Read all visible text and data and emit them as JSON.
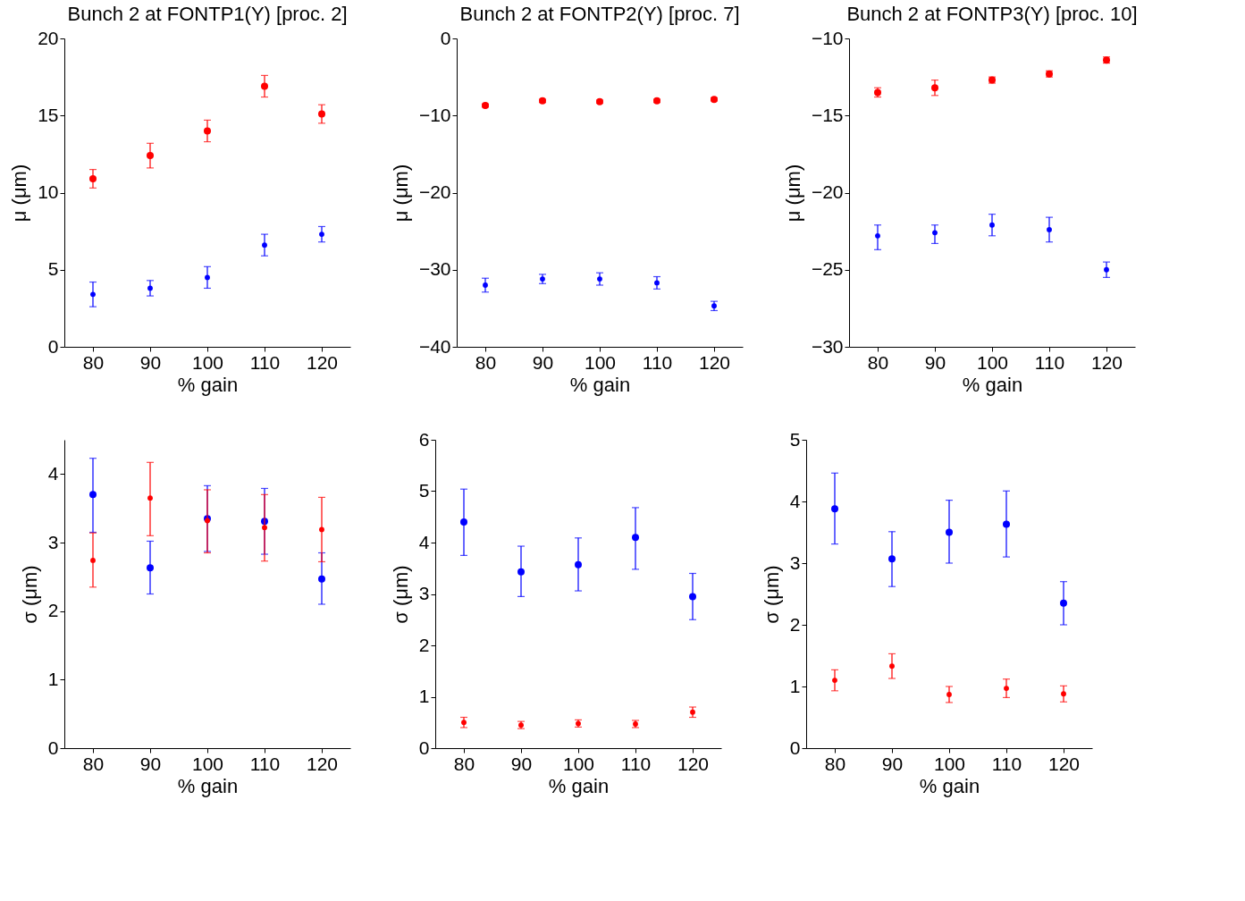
{
  "chart_data": [
    {
      "type": "scatter",
      "title": "Bunch 2 at FONTP1(Y) [proc. 2]",
      "xlabel": "% gain",
      "ylabel": "μ (μm)",
      "x": [
        80,
        90,
        100,
        110,
        120
      ],
      "xlim": [
        75,
        125
      ],
      "xticks": [
        80,
        90,
        100,
        110,
        120
      ],
      "ylim": [
        0,
        20
      ],
      "yticks": [
        0,
        5,
        10,
        15,
        20
      ],
      "grid": false,
      "marker": "circle",
      "series": [
        {
          "color": "#ff0000",
          "values": [
            10.9,
            12.4,
            14.0,
            16.9,
            15.1
          ],
          "errors": [
            [
              10.3,
              11.5
            ],
            [
              11.6,
              13.2
            ],
            [
              13.3,
              14.7
            ],
            [
              16.2,
              17.6
            ],
            [
              14.5,
              15.7
            ]
          ]
        },
        {
          "color": "#0000ff",
          "values": [
            3.4,
            3.8,
            4.5,
            6.6,
            7.3
          ],
          "errors": [
            [
              2.6,
              4.2
            ],
            [
              3.3,
              4.3
            ],
            [
              3.8,
              5.2
            ],
            [
              5.9,
              7.3
            ],
            [
              6.8,
              7.8
            ]
          ]
        }
      ]
    },
    {
      "type": "scatter",
      "title": "Bunch 2 at FONTP2(Y) [proc. 7]",
      "xlabel": "% gain",
      "ylabel": "μ (μm)",
      "x": [
        80,
        90,
        100,
        110,
        120
      ],
      "xlim": [
        75,
        125
      ],
      "xticks": [
        80,
        90,
        100,
        110,
        120
      ],
      "ylim": [
        -40,
        0
      ],
      "yticks": [
        -40,
        -30,
        -20,
        -10,
        0
      ],
      "grid": false,
      "marker": "circle",
      "series": [
        {
          "color": "#ff0000",
          "values": [
            -8.7,
            -8.1,
            -8.2,
            -8.1,
            -7.9
          ],
          "errors": [
            [
              -8.9,
              -8.5
            ],
            [
              -8.3,
              -7.9
            ],
            [
              -8.4,
              -8.0
            ],
            [
              -8.3,
              -7.9
            ],
            [
              -8.1,
              -7.7
            ]
          ]
        },
        {
          "color": "#0000ff",
          "values": [
            -32.0,
            -31.2,
            -31.2,
            -31.7,
            -34.7
          ],
          "errors": [
            [
              -32.9,
              -31.1
            ],
            [
              -31.8,
              -30.6
            ],
            [
              -32.0,
              -30.4
            ],
            [
              -32.5,
              -30.9
            ],
            [
              -35.3,
              -34.1
            ]
          ]
        }
      ]
    },
    {
      "type": "scatter",
      "title": "Bunch 2 at FONTP3(Y) [proc. 10]",
      "xlabel": "% gain",
      "ylabel": "μ (μm)",
      "x": [
        80,
        90,
        100,
        110,
        120
      ],
      "xlim": [
        75,
        125
      ],
      "xticks": [
        80,
        90,
        100,
        110,
        120
      ],
      "ylim": [
        -30,
        -10
      ],
      "yticks": [
        -30,
        -25,
        -20,
        -15,
        -10
      ],
      "grid": false,
      "marker": "circle",
      "series": [
        {
          "color": "#ff0000",
          "values": [
            -13.5,
            -13.2,
            -12.7,
            -12.3,
            -11.4
          ],
          "errors": [
            [
              -13.8,
              -13.2
            ],
            [
              -13.7,
              -12.7
            ],
            [
              -12.9,
              -12.5
            ],
            [
              -12.5,
              -12.1
            ],
            [
              -11.6,
              -11.2
            ]
          ]
        },
        {
          "color": "#0000ff",
          "values": [
            -22.8,
            -22.6,
            -22.1,
            -22.4,
            -25.0
          ],
          "errors": [
            [
              -23.7,
              -22.1
            ],
            [
              -23.3,
              -22.1
            ],
            [
              -22.8,
              -21.4
            ],
            [
              -23.2,
              -21.6
            ],
            [
              -25.5,
              -24.5
            ]
          ]
        }
      ]
    },
    {
      "type": "scatter",
      "xlabel": "% gain",
      "ylabel": "σ (μm)",
      "x": [
        80,
        90,
        100,
        110,
        120
      ],
      "xlim": [
        75,
        125
      ],
      "xticks": [
        80,
        90,
        100,
        110,
        120
      ],
      "ylim": [
        0,
        4.5
      ],
      "yticks": [
        0,
        1,
        2,
        3,
        4
      ],
      "grid": false,
      "marker": "circle",
      "series": [
        {
          "color": "#0000ff",
          "values": [
            3.7,
            2.63,
            3.35,
            3.31,
            2.47
          ],
          "errors": [
            [
              3.15,
              4.23
            ],
            [
              2.25,
              3.02
            ],
            [
              2.87,
              3.83
            ],
            [
              2.83,
              3.79
            ],
            [
              2.1,
              2.85
            ]
          ]
        },
        {
          "color": "#ff0000",
          "values": [
            2.74,
            3.65,
            3.32,
            3.22,
            3.19
          ],
          "errors": [
            [
              2.35,
              3.14
            ],
            [
              3.1,
              4.17
            ],
            [
              2.85,
              3.77
            ],
            [
              2.73,
              3.7
            ],
            [
              2.72,
              3.66
            ]
          ]
        }
      ]
    },
    {
      "type": "scatter",
      "xlabel": "% gain",
      "ylabel": "σ (μm)",
      "x": [
        80,
        90,
        100,
        110,
        120
      ],
      "xlim": [
        75,
        125
      ],
      "xticks": [
        80,
        90,
        100,
        110,
        120
      ],
      "ylim": [
        0,
        6
      ],
      "yticks": [
        0,
        1,
        2,
        3,
        4,
        5,
        6
      ],
      "grid": false,
      "marker": "circle",
      "series": [
        {
          "color": "#0000ff",
          "values": [
            4.4,
            3.43,
            3.57,
            4.1,
            2.95
          ],
          "errors": [
            [
              3.75,
              5.04
            ],
            [
              2.95,
              3.93
            ],
            [
              3.06,
              4.09
            ],
            [
              3.48,
              4.68
            ],
            [
              2.5,
              3.4
            ]
          ]
        },
        {
          "color": "#ff0000",
          "values": [
            0.5,
            0.45,
            0.48,
            0.47,
            0.7
          ],
          "errors": [
            [
              0.4,
              0.6
            ],
            [
              0.38,
              0.52
            ],
            [
              0.41,
              0.55
            ],
            [
              0.4,
              0.54
            ],
            [
              0.6,
              0.8
            ]
          ]
        }
      ]
    },
    {
      "type": "scatter",
      "xlabel": "% gain",
      "ylabel": "σ (μm)",
      "x": [
        80,
        90,
        100,
        110,
        120
      ],
      "xlim": [
        75,
        125
      ],
      "xticks": [
        80,
        90,
        100,
        110,
        120
      ],
      "ylim": [
        0,
        5
      ],
      "yticks": [
        0,
        1,
        2,
        3,
        4,
        5
      ],
      "grid": false,
      "marker": "circle",
      "series": [
        {
          "color": "#0000ff",
          "values": [
            3.88,
            3.07,
            3.5,
            3.63,
            2.35
          ],
          "errors": [
            [
              3.31,
              4.46
            ],
            [
              2.62,
              3.51
            ],
            [
              3.0,
              4.02
            ],
            [
              3.1,
              4.17
            ],
            [
              2.0,
              2.7
            ]
          ]
        },
        {
          "color": "#ff0000",
          "values": [
            1.1,
            1.33,
            0.87,
            0.97,
            0.88
          ],
          "errors": [
            [
              0.93,
              1.27
            ],
            [
              1.13,
              1.53
            ],
            [
              0.74,
              1.0
            ],
            [
              0.82,
              1.12
            ],
            [
              0.75,
              1.01
            ]
          ]
        }
      ]
    }
  ]
}
